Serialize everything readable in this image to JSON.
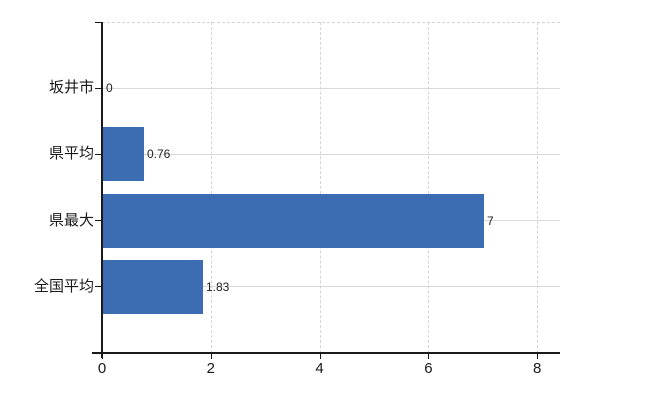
{
  "chart_data": {
    "type": "bar",
    "orientation": "horizontal",
    "title": "",
    "xlabel": "",
    "ylabel": "",
    "categories": [
      "坂井市",
      "県平均",
      "県最大",
      "全国平均"
    ],
    "values": [
      0,
      0.76,
      7,
      1.83
    ],
    "value_labels": [
      "0",
      "0.76",
      "7",
      "1.83"
    ],
    "xticks": [
      0,
      2,
      4,
      6,
      8
    ],
    "xtick_labels": [
      "0",
      "2",
      "4",
      "6",
      "8"
    ],
    "xlim": [
      0,
      8.42
    ],
    "grid": "on",
    "legend": "none",
    "colors": {
      "bar": "#3c6cb2",
      "axis": "#1a1a1a",
      "gridline_h": "#d9d9d9",
      "gridline_v": "#d4d4d4",
      "text": "#1a1a1a",
      "value_text": "#222222",
      "background": "#ffffff"
    }
  }
}
